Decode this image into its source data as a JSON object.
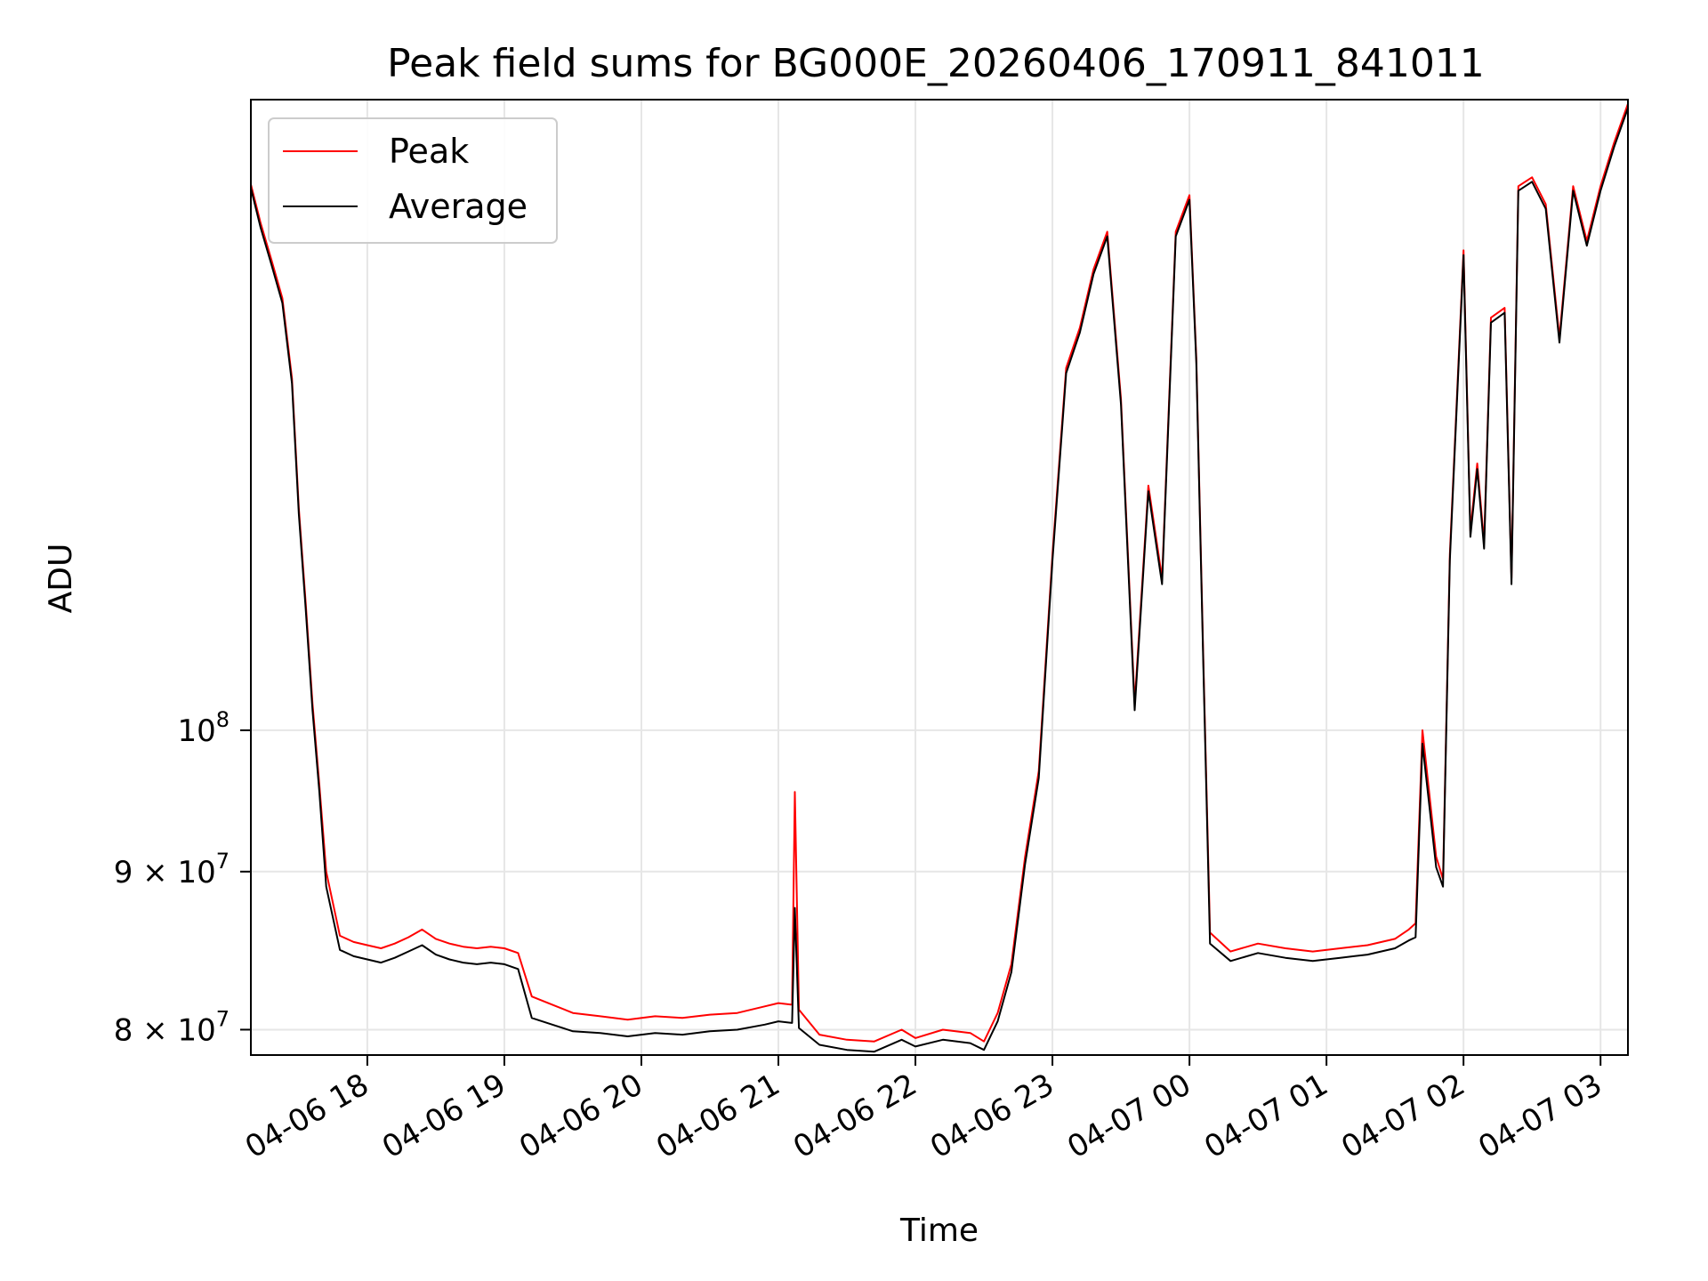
{
  "chart_data": {
    "type": "line",
    "title": "Peak field sums for BG000E_20260406_170911_841011",
    "xlabel": "Time",
    "ylabel": "ADU",
    "yscale": "log",
    "grid": true,
    "legend_position": "top-left",
    "xlim": [
      17.15,
      27.2
    ],
    "ylim": [
      78500000,
      160000000
    ],
    "x_unit": "hours since 2026-04-06 00:00",
    "x_ticks": [
      {
        "value": 18,
        "label": "04-06 18"
      },
      {
        "value": 19,
        "label": "04-06 19"
      },
      {
        "value": 20,
        "label": "04-06 20"
      },
      {
        "value": 21,
        "label": "04-06 21"
      },
      {
        "value": 22,
        "label": "04-06 22"
      },
      {
        "value": 23,
        "label": "04-06 23"
      },
      {
        "value": 24,
        "label": "04-07 00"
      },
      {
        "value": 25,
        "label": "04-07 01"
      },
      {
        "value": 26,
        "label": "04-07 02"
      },
      {
        "value": 27,
        "label": "04-07 03"
      }
    ],
    "y_ticks": [
      {
        "value": 80000000,
        "mantissa": "8",
        "exponent": "7"
      },
      {
        "value": 90000000,
        "mantissa": "9",
        "exponent": "7"
      },
      {
        "value": 100000000,
        "mantissa": "",
        "exponent": "8"
      }
    ],
    "y_tick_base": "10",
    "y_tick_times": "×",
    "series": [
      {
        "name": "Peak",
        "color": "#ff0000",
        "x": [
          17.15,
          17.22,
          17.3,
          17.38,
          17.45,
          17.5,
          17.55,
          17.6,
          17.65,
          17.7,
          17.8,
          17.9,
          18.0,
          18.1,
          18.2,
          18.3,
          18.4,
          18.5,
          18.6,
          18.7,
          18.8,
          18.9,
          19.0,
          19.1,
          19.2,
          19.35,
          19.5,
          19.7,
          19.9,
          20.1,
          20.3,
          20.5,
          20.7,
          20.9,
          21.0,
          21.1,
          21.12,
          21.15,
          21.3,
          21.5,
          21.7,
          21.9,
          22.0,
          22.2,
          22.4,
          22.5,
          22.6,
          22.7,
          22.8,
          22.9,
          23.0,
          23.1,
          23.2,
          23.3,
          23.4,
          23.5,
          23.6,
          23.7,
          23.8,
          23.9,
          24.0,
          24.05,
          24.1,
          24.15,
          24.3,
          24.5,
          24.7,
          24.9,
          25.1,
          25.3,
          25.5,
          25.6,
          25.65,
          25.7,
          25.8,
          25.85,
          25.9,
          26.0,
          26.05,
          26.1,
          26.15,
          26.2,
          26.3,
          26.35,
          26.4,
          26.5,
          26.6,
          26.7,
          26.8,
          26.9,
          27.0,
          27.1,
          27.2
        ],
        "y": [
          150200000,
          146000000,
          142000000,
          138000000,
          130000000,
          118000000,
          110000000,
          102000000,
          96000000,
          90000000,
          85800000,
          85400000,
          85200000,
          85000000,
          85300000,
          85700000,
          86200000,
          85600000,
          85300000,
          85100000,
          85000000,
          85100000,
          85000000,
          84700000,
          82000000,
          81500000,
          81000000,
          80800000,
          80600000,
          80800000,
          80700000,
          80900000,
          81000000,
          81400000,
          81600000,
          81500000,
          95500000,
          81200000,
          79700000,
          79400000,
          79300000,
          80000000,
          79500000,
          80000000,
          79800000,
          79300000,
          81000000,
          84000000,
          91000000,
          97000000,
          114000000,
          131000000,
          135000000,
          141000000,
          145000000,
          128000000,
          102000000,
          120000000,
          112000000,
          145000000,
          149000000,
          132000000,
          106000000,
          86000000,
          84800000,
          85300000,
          85000000,
          84800000,
          85000000,
          85200000,
          85600000,
          86200000,
          86600000,
          100000000,
          91000000,
          89500000,
          114000000,
          143000000,
          116000000,
          122000000,
          115000000,
          136000000,
          137000000,
          112000000,
          150000000,
          151000000,
          148000000,
          134000000,
          150000000,
          144000000,
          150000000,
          155000000,
          159500000
        ]
      },
      {
        "name": "Average",
        "color": "#000000",
        "x": [
          17.15,
          17.22,
          17.3,
          17.38,
          17.45,
          17.5,
          17.55,
          17.6,
          17.65,
          17.7,
          17.8,
          17.9,
          18.0,
          18.1,
          18.2,
          18.3,
          18.4,
          18.5,
          18.6,
          18.7,
          18.8,
          18.9,
          19.0,
          19.1,
          19.2,
          19.35,
          19.5,
          19.7,
          19.9,
          20.1,
          20.3,
          20.5,
          20.7,
          20.9,
          21.0,
          21.1,
          21.12,
          21.15,
          21.3,
          21.5,
          21.7,
          21.9,
          22.0,
          22.2,
          22.4,
          22.5,
          22.6,
          22.7,
          22.8,
          22.9,
          23.0,
          23.1,
          23.2,
          23.3,
          23.4,
          23.5,
          23.6,
          23.7,
          23.8,
          23.9,
          24.0,
          24.05,
          24.1,
          24.15,
          24.3,
          24.5,
          24.7,
          24.9,
          25.1,
          25.3,
          25.5,
          25.6,
          25.65,
          25.7,
          25.8,
          25.85,
          25.9,
          26.0,
          26.05,
          26.1,
          26.15,
          26.2,
          26.3,
          26.35,
          26.4,
          26.5,
          26.6,
          26.7,
          26.8,
          26.9,
          27.0,
          27.1,
          27.2
        ],
        "y": [
          149800000,
          145500000,
          141500000,
          137500000,
          129500000,
          117500000,
          109500000,
          101500000,
          95500000,
          89000000,
          84900000,
          84500000,
          84300000,
          84100000,
          84400000,
          84800000,
          85200000,
          84600000,
          84300000,
          84100000,
          84000000,
          84100000,
          84000000,
          83700000,
          80700000,
          80300000,
          79900000,
          79800000,
          79600000,
          79800000,
          79700000,
          79900000,
          80000000,
          80300000,
          80500000,
          80400000,
          87600000,
          80100000,
          79100000,
          78800000,
          78700000,
          79400000,
          79000000,
          79400000,
          79200000,
          78800000,
          80500000,
          83500000,
          90500000,
          96500000,
          113500000,
          130500000,
          134500000,
          140500000,
          144500000,
          127500000,
          101500000,
          119500000,
          111500000,
          144500000,
          148500000,
          131500000,
          105500000,
          85300000,
          84200000,
          84700000,
          84400000,
          84200000,
          84400000,
          84600000,
          85000000,
          85500000,
          85700000,
          99000000,
          90300000,
          89000000,
          113500000,
          142500000,
          115500000,
          121500000,
          114500000,
          135500000,
          136500000,
          111500000,
          149500000,
          150500000,
          147500000,
          133500000,
          149500000,
          143500000,
          149500000,
          154500000,
          159000000
        ]
      }
    ]
  }
}
